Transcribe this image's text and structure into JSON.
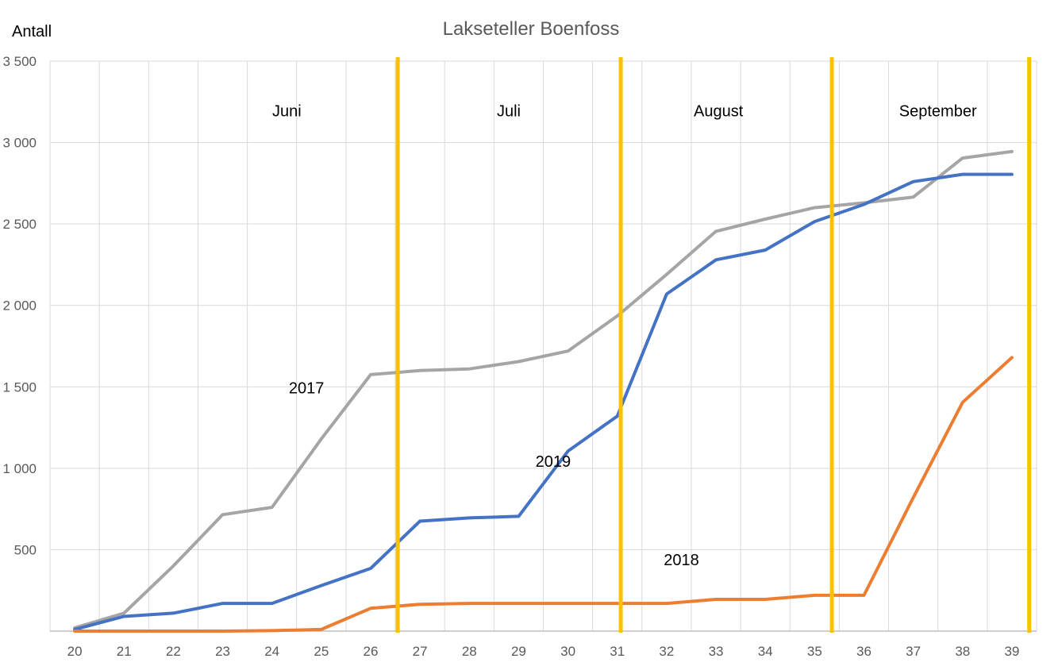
{
  "chart_data": {
    "type": "line",
    "title": "Lakseteller Boenfoss",
    "ylabel": "Antall",
    "xlabel": "",
    "ylim": [
      0,
      3500
    ],
    "yticks": [
      0,
      500,
      1000,
      1500,
      2000,
      2500,
      3000,
      3500
    ],
    "ytick_labels": [
      "",
      "500",
      "1 000",
      "1 500",
      "2 000",
      "2 500",
      "3 000",
      "3 500"
    ],
    "x": [
      20,
      21,
      22,
      23,
      24,
      25,
      26,
      27,
      28,
      29,
      30,
      31,
      32,
      33,
      34,
      35,
      36,
      37,
      38,
      39
    ],
    "grid": true,
    "series": [
      {
        "name": "2017",
        "color": "#a5a5a5",
        "values": [
          20,
          110,
          400,
          715,
          760,
          1180,
          1575,
          1600,
          1610,
          1655,
          1720,
          1935,
          2190,
          2455,
          2530,
          2600,
          2630,
          2665,
          2905,
          2945
        ]
      },
      {
        "name": "2019",
        "color": "#4472c4",
        "values": [
          10,
          90,
          110,
          170,
          170,
          280,
          385,
          675,
          695,
          705,
          1105,
          1320,
          2070,
          2280,
          2340,
          2515,
          2620,
          2760,
          2805,
          2805
        ]
      },
      {
        "name": "2018",
        "color": "#ed7d31",
        "values": [
          0,
          0,
          0,
          0,
          3,
          10,
          140,
          165,
          170,
          170,
          170,
          170,
          170,
          195,
          195,
          220,
          220,
          820,
          1405,
          1680
        ]
      }
    ],
    "series_labels": [
      {
        "text": "2017",
        "x": 24.7,
        "y": 1460
      },
      {
        "text": "2019",
        "x": 29.7,
        "y": 1010
      },
      {
        "text": "2018",
        "x": 32.3,
        "y": 405
      }
    ],
    "month_dividers": {
      "color": "#ffc000",
      "x": [
        26.55,
        31.07,
        35.35,
        39.35
      ]
    },
    "month_labels": [
      {
        "text": "Juni",
        "x": 24.3,
        "y": 3160
      },
      {
        "text": "Juli",
        "x": 28.8,
        "y": 3160
      },
      {
        "text": "August",
        "x": 33.05,
        "y": 3160
      },
      {
        "text": "September",
        "x": 37.5,
        "y": 3160
      }
    ]
  }
}
